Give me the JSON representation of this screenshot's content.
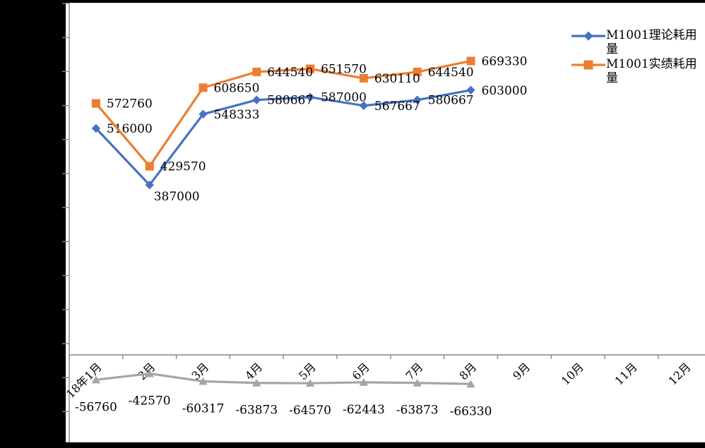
{
  "chart_data": {
    "type": "line",
    "title": "",
    "xlabel": "",
    "ylabel": "",
    "categories": [
      "18年1月",
      "2月",
      "3月",
      "4月",
      "5月",
      "6月",
      "7月",
      "8月",
      "9月",
      "10月",
      "11月",
      "12月"
    ],
    "series": [
      {
        "name": "M1001理论耗用量",
        "color": "#4472C4",
        "marker": "diamond",
        "in_legend": true,
        "values": [
          516000,
          387000,
          548333,
          580667,
          587000,
          567667,
          580667,
          603000
        ]
      },
      {
        "name": "M1001实绩耗用量",
        "color": "#ED7D31",
        "marker": "square",
        "in_legend": true,
        "values": [
          572760,
          429570,
          608650,
          644540,
          651570,
          630110,
          644540,
          669330
        ]
      },
      {
        "name": "",
        "color": "#A5A5A5",
        "marker": "triangle",
        "in_legend": false,
        "values": [
          -56760,
          -42570,
          -60317,
          -63873,
          -64570,
          -62443,
          -63873,
          -66330
        ]
      }
    ],
    "data_labels": true,
    "ylim": [
      -200000,
      800000
    ],
    "gridlines": false,
    "legend_position": "top-right",
    "axis_color": "#868686",
    "label_color": "#000000"
  }
}
